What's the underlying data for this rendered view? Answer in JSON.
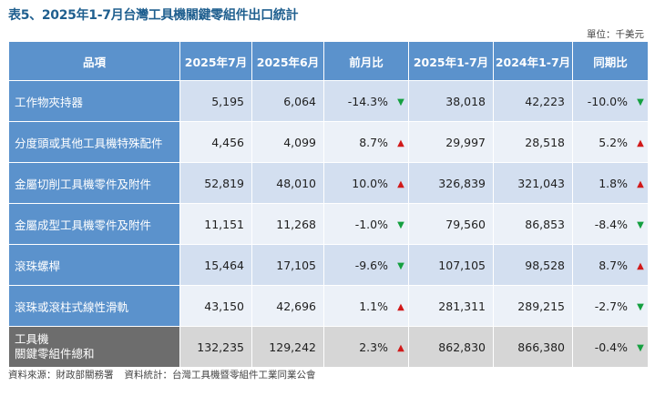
{
  "title": "表5、2025年1-7月台灣工具機關鍵零組件出口統計",
  "unit": "單位：千美元",
  "columns": [
    "品項",
    "2025年7月",
    "2025年6月",
    "前月比",
    "2025年1-7月",
    "2024年1-7月",
    "同期比"
  ],
  "rows": [
    {
      "item": "工作物夾持器",
      "jul2025": "5,195",
      "jun2025": "6,064",
      "mom": "-14.3%",
      "mom_dir": "down",
      "ytd2025": "38,018",
      "ytd2024": "42,223",
      "yoy": "-10.0%",
      "yoy_dir": "down"
    },
    {
      "item": "分度頭或其他工具機特殊配件",
      "jul2025": "4,456",
      "jun2025": "4,099",
      "mom": "8.7%",
      "mom_dir": "up",
      "ytd2025": "29,997",
      "ytd2024": "28,518",
      "yoy": "5.2%",
      "yoy_dir": "up"
    },
    {
      "item": "金屬切削工具機零件及附件",
      "jul2025": "52,819",
      "jun2025": "48,010",
      "mom": "10.0%",
      "mom_dir": "up",
      "ytd2025": "326,839",
      "ytd2024": "321,043",
      "yoy": "1.8%",
      "yoy_dir": "up"
    },
    {
      "item": "金屬成型工具機零件及附件",
      "jul2025": "11,151",
      "jun2025": "11,268",
      "mom": "-1.0%",
      "mom_dir": "down",
      "ytd2025": "79,560",
      "ytd2024": "86,853",
      "yoy": "-8.4%",
      "yoy_dir": "down"
    },
    {
      "item": "滾珠螺桿",
      "jul2025": "15,464",
      "jun2025": "17,105",
      "mom": "-9.6%",
      "mom_dir": "down",
      "ytd2025": "107,105",
      "ytd2024": "98,528",
      "yoy": "8.7%",
      "yoy_dir": "up"
    },
    {
      "item": "滾珠或滾柱式線性滑軌",
      "jul2025": "43,150",
      "jun2025": "42,696",
      "mom": "1.1%",
      "mom_dir": "up",
      "ytd2025": "281,311",
      "ytd2024": "289,215",
      "yoy": "-2.7%",
      "yoy_dir": "down"
    }
  ],
  "total": {
    "item_line1": "工具機",
    "item_line2": "關鍵零組件總和",
    "jul2025": "132,235",
    "jun2025": "129,242",
    "mom": "2.3%",
    "mom_dir": "up",
    "ytd2025": "862,830",
    "ytd2024": "866,380",
    "yoy": "-0.4%",
    "yoy_dir": "down"
  },
  "source": "資料來源：財政部關務署",
  "compiled_by": "資料統計：台灣工具機暨零組件工業同業公會",
  "colors": {
    "header_bg": "#5b92cc",
    "row_odd": "#d3dff0",
    "row_even": "#ecf1f8",
    "total_label": "#6d6d6d",
    "total_bg": "#d6d6d6",
    "up": "#d11919",
    "down": "#15a040"
  },
  "icons": {
    "up": "triangle-up-icon",
    "down": "triangle-down-icon"
  }
}
